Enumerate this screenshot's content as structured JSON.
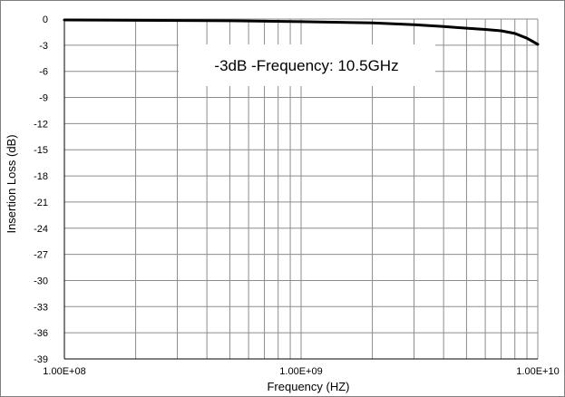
{
  "chart_data": {
    "type": "line",
    "title": "",
    "xlabel": "Frequency (HZ)",
    "ylabel": "Insertion Loss (dB)",
    "x_scale": "log",
    "xlim": [
      100000000,
      10000000000
    ],
    "ylim": [
      -39,
      0
    ],
    "x_ticks": [
      100000000,
      1000000000,
      10000000000
    ],
    "x_tick_labels": [
      "1.00E+08",
      "1.00E+09",
      "1.00E+10"
    ],
    "y_ticks": [
      0,
      -3,
      -6,
      -9,
      -12,
      -15,
      -18,
      -21,
      -24,
      -27,
      -30,
      -33,
      -36,
      -39
    ],
    "y_tick_labels": [
      "0",
      "-3",
      "-6",
      "-9",
      "-12",
      "-15",
      "-18",
      "-21",
      "-24",
      "-27",
      "-30",
      "-33",
      "-36",
      "-39"
    ],
    "grid": true,
    "series_color": "#000000",
    "annotation": "-3dB -Frequency: 10.5GHz",
    "x": [
      100000000,
      200000000,
      500000000,
      1000000000,
      2000000000,
      3000000000,
      4000000000,
      5000000000,
      6000000000,
      7000000000,
      8000000000,
      9000000000,
      10000000000
    ],
    "y": [
      -0.1,
      -0.15,
      -0.2,
      -0.3,
      -0.45,
      -0.65,
      -0.85,
      -1.05,
      -1.2,
      -1.35,
      -1.65,
      -2.2,
      -2.9
    ]
  }
}
